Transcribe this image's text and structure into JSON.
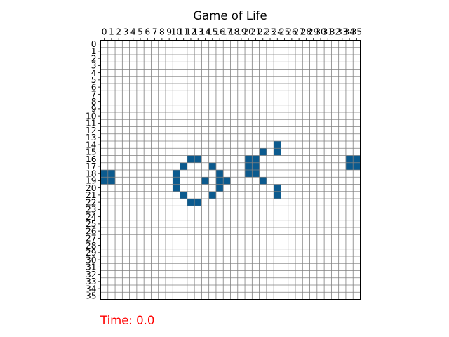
{
  "window": {
    "title": "Game of Life"
  },
  "status": {
    "time_label": "Time: 0.0"
  },
  "colors": {
    "alive": "#1f77b4",
    "alive_dark": "#0b5a8e",
    "dead": "#ffffff",
    "grid_line": "#808080",
    "status_text": "#ff0000"
  },
  "board": {
    "columns": 36,
    "rows": 36,
    "live_cells": [
      [
        18,
        0
      ],
      [
        18,
        1
      ],
      [
        19,
        0
      ],
      [
        19,
        1
      ],
      [
        17,
        34
      ],
      [
        17,
        35
      ],
      [
        16,
        34
      ],
      [
        16,
        35
      ],
      [
        16,
        12
      ],
      [
        16,
        13
      ],
      [
        17,
        11
      ],
      [
        17,
        15
      ],
      [
        18,
        10
      ],
      [
        18,
        16
      ],
      [
        19,
        10
      ],
      [
        19,
        14
      ],
      [
        19,
        16
      ],
      [
        19,
        17
      ],
      [
        20,
        10
      ],
      [
        20,
        16
      ],
      [
        21,
        11
      ],
      [
        21,
        15
      ],
      [
        22,
        12
      ],
      [
        22,
        13
      ],
      [
        16,
        20
      ],
      [
        16,
        21
      ],
      [
        17,
        20
      ],
      [
        17,
        21
      ],
      [
        18,
        20
      ],
      [
        18,
        21
      ],
      [
        15,
        22
      ],
      [
        19,
        22
      ],
      [
        14,
        24
      ],
      [
        15,
        24
      ],
      [
        20,
        24
      ],
      [
        21,
        24
      ]
    ]
  },
  "chart_data": {
    "type": "heatmap",
    "title": "Game of Life",
    "x_ticks": [
      "0",
      "1",
      "2",
      "3",
      "4",
      "5",
      "6",
      "7",
      "8",
      "9",
      "10",
      "11",
      "12",
      "13",
      "14",
      "15",
      "16",
      "17",
      "18",
      "19",
      "20",
      "21",
      "22",
      "23",
      "24",
      "25",
      "26",
      "27",
      "28",
      "29",
      "30",
      "31",
      "32",
      "33",
      "34",
      "35"
    ],
    "y_ticks": [
      "0",
      "1",
      "2",
      "3",
      "4",
      "5",
      "6",
      "7",
      "8",
      "9",
      "10",
      "11",
      "12",
      "13",
      "14",
      "15",
      "16",
      "17",
      "18",
      "19",
      "20",
      "21",
      "22",
      "23",
      "24",
      "25",
      "26",
      "27",
      "28",
      "29",
      "30",
      "31",
      "32",
      "33",
      "34",
      "35"
    ],
    "x_axis_position": "top",
    "grid": true,
    "values_meaning": "1 = alive, 0 = dead"
  }
}
